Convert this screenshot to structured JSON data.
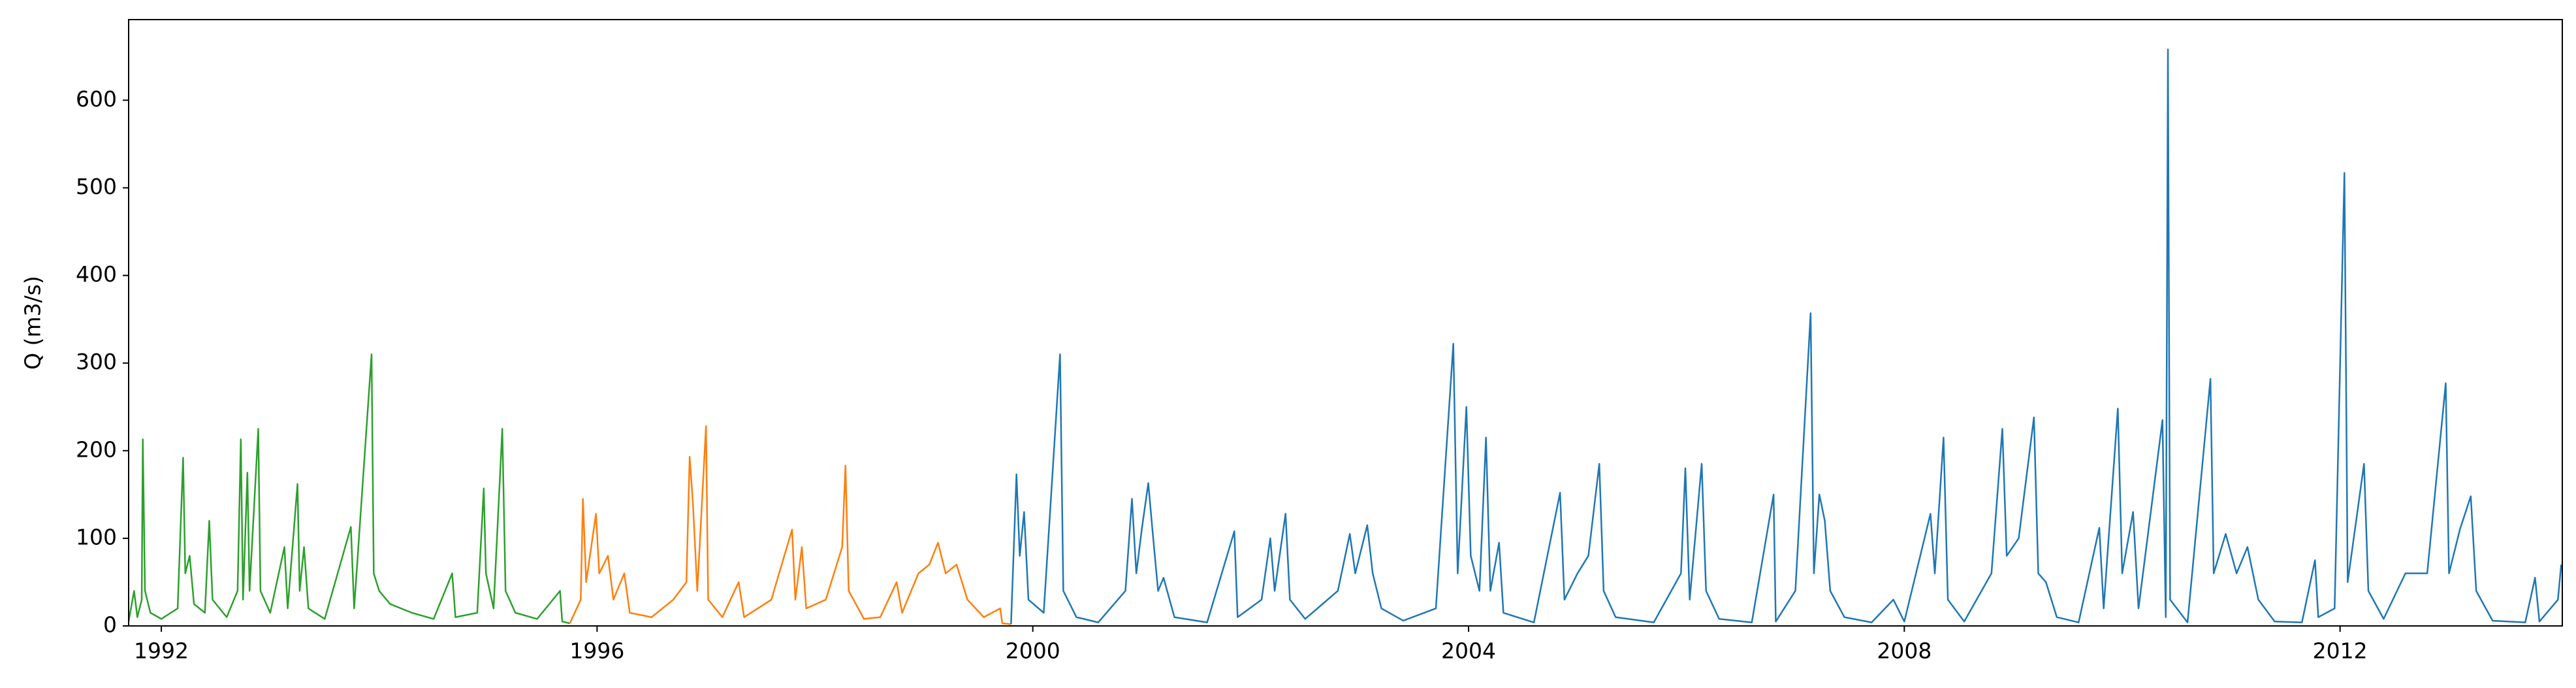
{
  "chart_data": {
    "type": "line",
    "ylabel": "Q (m3/s)",
    "xlim": [
      1991.7,
      2014.04
    ],
    "xticks": [
      1992,
      1996,
      2000,
      2004,
      2008,
      2012
    ],
    "ylim": [
      0,
      692
    ],
    "yticks": [
      0,
      100,
      200,
      300,
      400,
      500,
      600
    ],
    "grid": false,
    "series": [
      {
        "color": "#2ca02c",
        "x": [
          1991.7,
          1991.75,
          1991.78,
          1991.82,
          1991.83,
          1991.85,
          1991.9,
          1992.0,
          1992.15,
          1992.2,
          1992.22,
          1992.26,
          1992.3,
          1992.4,
          1992.44,
          1992.47,
          1992.6,
          1992.7,
          1992.73,
          1992.75,
          1992.79,
          1992.81,
          1992.89,
          1992.91,
          1993.0,
          1993.13,
          1993.16,
          1993.25,
          1993.27,
          1993.31,
          1993.35,
          1993.5,
          1993.74,
          1993.77,
          1993.93,
          1993.95,
          1994.0,
          1994.1,
          1994.3,
          1994.5,
          1994.67,
          1994.7,
          1994.9,
          1994.96,
          1994.98,
          1995.05,
          1995.13,
          1995.16,
          1995.25,
          1995.45,
          1995.66,
          1995.68,
          1995.75
        ],
        "values": [
          5,
          40,
          10,
          30,
          213,
          40,
          15,
          8,
          20,
          192,
          60,
          80,
          25,
          15,
          120,
          30,
          10,
          40,
          213,
          30,
          175,
          40,
          225,
          40,
          15,
          90,
          20,
          162,
          40,
          90,
          20,
          8,
          113,
          20,
          310,
          60,
          40,
          25,
          15,
          8,
          60,
          10,
          15,
          157,
          60,
          20,
          225,
          40,
          15,
          8,
          40,
          5,
          3
        ]
      },
      {
        "color": "#ff7f0e",
        "x": [
          1995.75,
          1995.85,
          1995.87,
          1995.9,
          1995.99,
          1996.02,
          1996.1,
          1996.15,
          1996.25,
          1996.3,
          1996.5,
          1996.7,
          1996.82,
          1996.85,
          1996.88,
          1996.92,
          1997.0,
          1997.02,
          1997.15,
          1997.3,
          1997.35,
          1997.6,
          1997.79,
          1997.82,
          1997.88,
          1997.92,
          1998.1,
          1998.25,
          1998.28,
          1998.31,
          1998.45,
          1998.6,
          1998.75,
          1998.8,
          1998.95,
          1999.05,
          1999.13,
          1999.2,
          1999.3,
          1999.4,
          1999.55,
          1999.7,
          1999.72,
          1999.8
        ],
        "values": [
          3,
          30,
          145,
          50,
          128,
          60,
          80,
          30,
          60,
          15,
          10,
          30,
          50,
          193,
          140,
          40,
          228,
          30,
          10,
          50,
          10,
          30,
          110,
          30,
          90,
          20,
          30,
          90,
          183,
          40,
          8,
          10,
          50,
          15,
          60,
          70,
          95,
          60,
          70,
          30,
          10,
          20,
          3,
          2
        ]
      },
      {
        "color": "#1f77b4",
        "x": [
          1999.8,
          1999.85,
          1999.88,
          1999.92,
          1999.96,
          2000.1,
          2000.25,
          2000.28,
          2000.4,
          2000.6,
          2000.85,
          2000.91,
          2000.95,
          2001.0,
          2001.06,
          2001.1,
          2001.15,
          2001.2,
          2001.3,
          2001.6,
          2001.85,
          2001.88,
          2002.1,
          2002.18,
          2002.22,
          2002.32,
          2002.36,
          2002.5,
          2002.8,
          2002.91,
          2002.96,
          2003.07,
          2003.12,
          2003.2,
          2003.4,
          2003.7,
          2003.86,
          2003.9,
          2003.98,
          2004.02,
          2004.1,
          2004.16,
          2004.2,
          2004.28,
          2004.32,
          2004.6,
          2004.84,
          2004.88,
          2005.0,
          2005.1,
          2005.2,
          2005.24,
          2005.35,
          2005.7,
          2005.95,
          2005.99,
          2006.03,
          2006.14,
          2006.18,
          2006.3,
          2006.6,
          2006.8,
          2006.82,
          2007.0,
          2007.14,
          2007.17,
          2007.22,
          2007.27,
          2007.32,
          2007.45,
          2007.7,
          2007.9,
          2008.0,
          2008.24,
          2008.28,
          2008.36,
          2008.4,
          2008.55,
          2008.8,
          2008.9,
          2008.94,
          2009.05,
          2009.19,
          2009.23,
          2009.3,
          2009.4,
          2009.6,
          2009.79,
          2009.83,
          2009.96,
          2010.0,
          2010.1,
          2010.15,
          2010.37,
          2010.4,
          2010.42,
          2010.44,
          2010.6,
          2010.81,
          2010.84,
          2010.95,
          2011.05,
          2011.15,
          2011.25,
          2011.4,
          2011.65,
          2011.77,
          2011.8,
          2011.95,
          2012.04,
          2012.07,
          2012.22,
          2012.26,
          2012.4,
          2012.6,
          2012.8,
          2012.97,
          2013.0,
          2013.1,
          2013.2,
          2013.25,
          2013.4,
          2013.7,
          2013.79,
          2013.83,
          2014.0,
          2014.03
        ],
        "values": [
          2,
          173,
          80,
          130,
          30,
          15,
          310,
          40,
          10,
          4,
          40,
          145,
          60,
          110,
          163,
          107,
          40,
          55,
          10,
          4,
          108,
          10,
          30,
          100,
          40,
          128,
          30,
          8,
          40,
          105,
          60,
          115,
          60,
          20,
          6,
          20,
          322,
          60,
          250,
          80,
          40,
          215,
          40,
          95,
          15,
          4,
          152,
          30,
          60,
          80,
          185,
          40,
          10,
          4,
          60,
          180,
          30,
          185,
          40,
          8,
          4,
          150,
          5,
          40,
          357,
          60,
          150,
          120,
          40,
          10,
          4,
          30,
          5,
          128,
          60,
          215,
          30,
          5,
          60,
          225,
          80,
          100,
          238,
          60,
          50,
          10,
          4,
          112,
          20,
          248,
          60,
          130,
          20,
          235,
          10,
          658,
          30,
          4,
          282,
          60,
          105,
          60,
          90,
          30,
          5,
          4,
          75,
          10,
          20,
          517,
          50,
          185,
          40,
          8,
          60,
          60,
          277,
          60,
          110,
          148,
          40,
          6,
          4,
          55,
          5,
          30,
          70
        ]
      }
    ]
  }
}
